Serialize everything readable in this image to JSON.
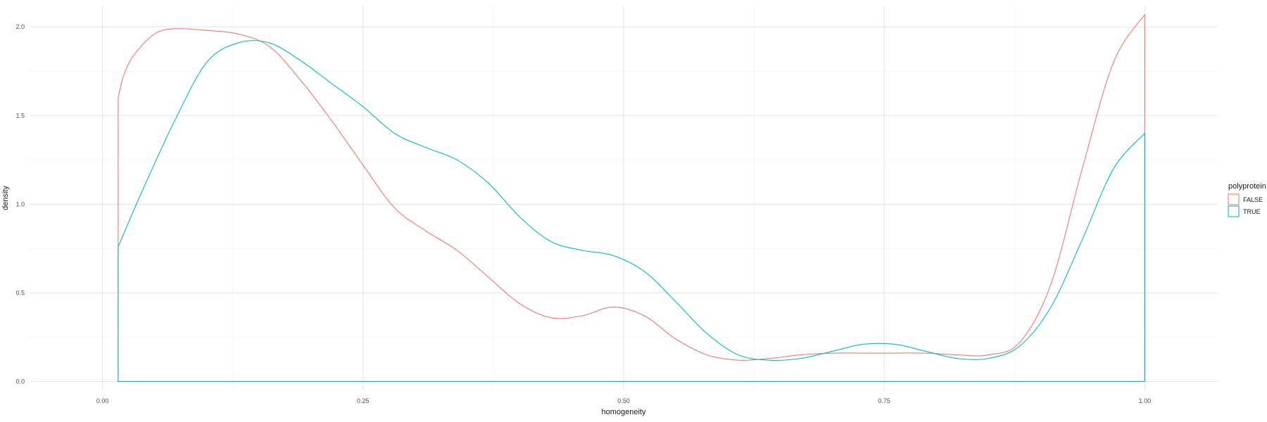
{
  "chart_data": {
    "type": "line",
    "subtype": "density",
    "title": "",
    "xlabel": "homogeneity",
    "ylabel": "density",
    "xlim": [
      -0.07,
      1.07
    ],
    "ylim": [
      -0.05,
      2.12
    ],
    "x_ticks": [
      0.0,
      0.25,
      0.5,
      0.75,
      1.0
    ],
    "x_tick_labels": [
      "0.00",
      "0.25",
      "0.50",
      "0.75",
      "1.00"
    ],
    "y_ticks": [
      0.0,
      0.5,
      1.0,
      1.5,
      2.0
    ],
    "y_tick_labels": [
      "0.0",
      "0.5",
      "1.0",
      "1.5",
      "2.0"
    ],
    "grid": true,
    "legend": {
      "title": "polyprotein",
      "position": "right"
    },
    "series": [
      {
        "name": "FALSE",
        "color": "#F8766D",
        "x": [
          0.015,
          0.02,
          0.03,
          0.05,
          0.07,
          0.1,
          0.13,
          0.16,
          0.19,
          0.22,
          0.25,
          0.28,
          0.31,
          0.34,
          0.37,
          0.4,
          0.43,
          0.46,
          0.49,
          0.52,
          0.55,
          0.58,
          0.61,
          0.64,
          0.67,
          0.7,
          0.73,
          0.76,
          0.79,
          0.82,
          0.85,
          0.88,
          0.91,
          0.94,
          0.97,
          1.0
        ],
        "y": [
          1.6,
          1.72,
          1.84,
          1.96,
          1.99,
          1.98,
          1.96,
          1.89,
          1.7,
          1.47,
          1.22,
          0.98,
          0.85,
          0.74,
          0.59,
          0.44,
          0.36,
          0.37,
          0.42,
          0.37,
          0.24,
          0.15,
          0.12,
          0.13,
          0.15,
          0.16,
          0.16,
          0.16,
          0.16,
          0.15,
          0.15,
          0.22,
          0.55,
          1.2,
          1.8,
          2.07
        ]
      },
      {
        "name": "TRUE",
        "color": "#00BFC4",
        "x": [
          0.015,
          0.04,
          0.07,
          0.1,
          0.13,
          0.16,
          0.19,
          0.22,
          0.25,
          0.28,
          0.31,
          0.34,
          0.37,
          0.4,
          0.43,
          0.46,
          0.49,
          0.52,
          0.55,
          0.58,
          0.61,
          0.64,
          0.67,
          0.7,
          0.73,
          0.76,
          0.79,
          0.82,
          0.85,
          0.88,
          0.91,
          0.94,
          0.97,
          1.0
        ],
        "y": [
          0.76,
          1.1,
          1.48,
          1.8,
          1.91,
          1.91,
          1.81,
          1.68,
          1.55,
          1.4,
          1.32,
          1.25,
          1.12,
          0.93,
          0.79,
          0.74,
          0.71,
          0.62,
          0.45,
          0.27,
          0.15,
          0.12,
          0.13,
          0.17,
          0.21,
          0.21,
          0.17,
          0.13,
          0.13,
          0.2,
          0.42,
          0.8,
          1.2,
          1.4
        ]
      }
    ],
    "support": [
      0.015,
      1.0
    ]
  }
}
